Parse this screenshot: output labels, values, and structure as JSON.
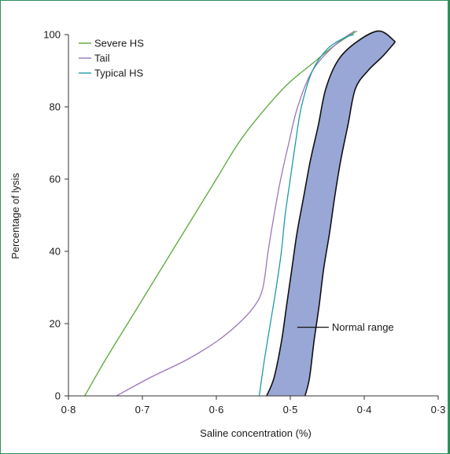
{
  "chart_data": {
    "type": "line",
    "xlabel": "Saline concentration (%)",
    "ylabel": "Percentage of lysis",
    "xlim": [
      0.8,
      0.3
    ],
    "ylim": [
      0,
      100
    ],
    "x_reversed": true,
    "grid": false,
    "legend_placement": "top-left",
    "xticks": [
      {
        "value": 0.8,
        "label": "0·8"
      },
      {
        "value": 0.7,
        "label": "0·7"
      },
      {
        "value": 0.6,
        "label": "0·6"
      },
      {
        "value": 0.5,
        "label": "0·5"
      },
      {
        "value": 0.4,
        "label": "0·4"
      },
      {
        "value": 0.3,
        "label": "0·3"
      }
    ],
    "yticks": [
      {
        "value": 0,
        "label": "0"
      },
      {
        "value": 20,
        "label": "20"
      },
      {
        "value": 40,
        "label": "40"
      },
      {
        "value": 60,
        "label": "60"
      },
      {
        "value": 80,
        "label": "80"
      },
      {
        "value": 100,
        "label": "100"
      }
    ],
    "series": [
      {
        "name": "Severe HS",
        "color": "#5aa83c",
        "points": [
          [
            0.778,
            0
          ],
          [
            0.75,
            10
          ],
          [
            0.72,
            20
          ],
          [
            0.69,
            30
          ],
          [
            0.66,
            40
          ],
          [
            0.63,
            50
          ],
          [
            0.6,
            60
          ],
          [
            0.57,
            70
          ],
          [
            0.54,
            78
          ],
          [
            0.505,
            86
          ],
          [
            0.47,
            92
          ],
          [
            0.44,
            97
          ],
          [
            0.41,
            101
          ]
        ]
      },
      {
        "name": "Tail",
        "color": "#9a78b8",
        "points": [
          [
            0.735,
            0
          ],
          [
            0.69,
            5
          ],
          [
            0.64,
            10
          ],
          [
            0.6,
            15
          ],
          [
            0.57,
            20
          ],
          [
            0.548,
            25
          ],
          [
            0.537,
            30
          ],
          [
            0.53,
            40
          ],
          [
            0.522,
            50
          ],
          [
            0.513,
            60
          ],
          [
            0.502,
            70
          ],
          [
            0.49,
            80
          ],
          [
            0.47,
            90
          ],
          [
            0.44,
            97
          ],
          [
            0.413,
            101
          ]
        ]
      },
      {
        "name": "Typical HS",
        "color": "#1f9aa8",
        "points": [
          [
            0.542,
            0
          ],
          [
            0.535,
            10
          ],
          [
            0.527,
            20
          ],
          [
            0.519,
            30
          ],
          [
            0.512,
            40
          ],
          [
            0.507,
            50
          ],
          [
            0.5,
            60
          ],
          [
            0.493,
            70
          ],
          [
            0.485,
            80
          ],
          [
            0.47,
            90
          ],
          [
            0.45,
            96
          ],
          [
            0.428,
            99
          ],
          [
            0.414,
            100
          ]
        ]
      }
    ],
    "band": {
      "name": "Normal range",
      "fill": "#98a7d6",
      "left_edge": [
        [
          0.532,
          0
        ],
        [
          0.522,
          5
        ],
        [
          0.512,
          15
        ],
        [
          0.505,
          25
        ],
        [
          0.498,
          35
        ],
        [
          0.491,
          45
        ],
        [
          0.482,
          55
        ],
        [
          0.473,
          65
        ],
        [
          0.462,
          75
        ],
        [
          0.452,
          85
        ],
        [
          0.435,
          93
        ],
        [
          0.41,
          98
        ],
        [
          0.38,
          101
        ],
        [
          0.358,
          98
        ]
      ],
      "right_edge": [
        [
          0.48,
          0
        ],
        [
          0.474,
          5
        ],
        [
          0.468,
          15
        ],
        [
          0.461,
          25
        ],
        [
          0.455,
          35
        ],
        [
          0.447,
          45
        ],
        [
          0.44,
          55
        ],
        [
          0.432,
          65
        ],
        [
          0.422,
          75
        ],
        [
          0.412,
          85
        ],
        [
          0.395,
          90
        ],
        [
          0.375,
          94
        ],
        [
          0.358,
          98
        ]
      ]
    },
    "annotations": [
      {
        "text": "Normal range",
        "x": 0.482,
        "y": 19
      }
    ]
  }
}
